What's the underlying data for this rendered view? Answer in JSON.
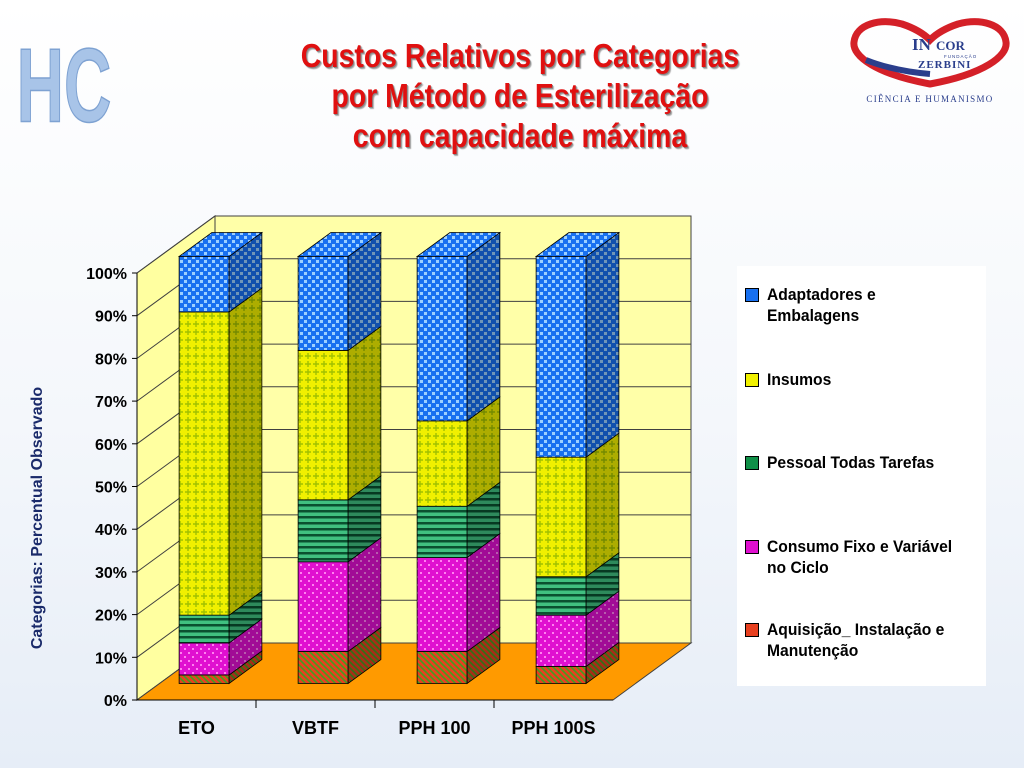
{
  "header": {
    "hc_mark": "HC",
    "title_lines": [
      "Custos Relativos por Categorias",
      "por Método de Esterilização",
      "com capacidade máxima"
    ]
  },
  "logo": {
    "brand_in": "IN",
    "brand_cor": "COR",
    "fundacao": "FUNDAÇÃO",
    "zerbini": "ZERBINI",
    "tagline": "CIÊNCIA E HUMANISMO",
    "colors": {
      "blue": "#2a3e8c",
      "red": "#d42028"
    }
  },
  "chart_data": {
    "type": "bar",
    "stacked": true,
    "three_d": true,
    "categories": [
      "ETO",
      "VBTF",
      "PPH 100",
      "PPH 100S"
    ],
    "ylabel": "Categorias: Percentual Observado",
    "ylim": [
      0,
      100
    ],
    "yticks": [
      "0%",
      "10%",
      "20%",
      "30%",
      "40%",
      "50%",
      "60%",
      "70%",
      "80%",
      "90%",
      "100%"
    ],
    "legend_position": "right",
    "series": [
      {
        "name": "Aquisição_ Instalação e Manutenção",
        "color": "#e84020",
        "values": [
          2,
          7.5,
          7.5,
          4
        ]
      },
      {
        "name": "Consumo Fixo e Variável no Ciclo",
        "color": "#e010d0",
        "values": [
          7.5,
          21,
          22,
          12
        ]
      },
      {
        "name": "Pessoal Todas Tarefas",
        "color": "#109048",
        "values": [
          6.5,
          14.5,
          12,
          9
        ]
      },
      {
        "name": "Insumos",
        "color": "#f0f000",
        "values": [
          71,
          35,
          20,
          28
        ]
      },
      {
        "name": "Adaptadores e Embalagens",
        "color": "#1870f0",
        "values": [
          13,
          22,
          38.5,
          47
        ]
      }
    ]
  }
}
